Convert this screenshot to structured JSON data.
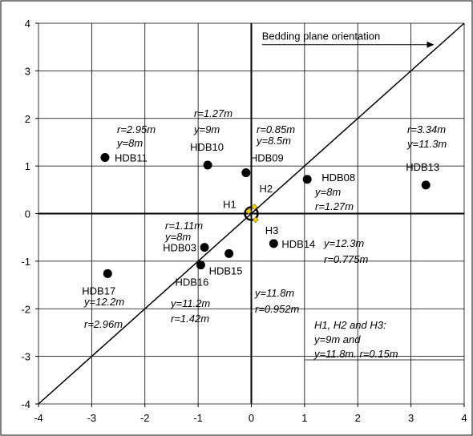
{
  "chart_data": {
    "type": "scatter",
    "title": "",
    "xlabel": "",
    "ylabel": "",
    "xlim": [
      -4,
      4
    ],
    "ylim": [
      -4,
      4
    ],
    "x_ticks": [
      "-4",
      "-3",
      "-2",
      "-1",
      "0",
      "1",
      "2",
      "3",
      "4"
    ],
    "y_ticks": [
      "4",
      "3",
      "2",
      "1",
      "0",
      "-1",
      "-2",
      "-3",
      "-4"
    ],
    "grid": true,
    "reference_line": {
      "from": [
        -4,
        -4
      ],
      "to": [
        4,
        4
      ]
    },
    "orientation_label": "Bedding plane orientation",
    "points": [
      {
        "label": "HDB11",
        "x": -2.75,
        "y": 1.18
      },
      {
        "label": "HDB10",
        "x": -0.82,
        "y": 1.02
      },
      {
        "label": "HDB09",
        "x": -0.1,
        "y": 0.86
      },
      {
        "label": "HDB08",
        "x": 1.05,
        "y": 0.72
      },
      {
        "label": "HDB13",
        "x": 3.28,
        "y": 0.6
      },
      {
        "label": "HDB14",
        "x": 0.42,
        "y": -0.63
      },
      {
        "label": "HDB15",
        "x": -0.42,
        "y": -0.84
      },
      {
        "label": "HDB03",
        "x": -0.88,
        "y": -0.71
      },
      {
        "label": "HDB16",
        "x": -0.95,
        "y": -1.08
      },
      {
        "label": "HDB17",
        "x": -2.7,
        "y": -1.26
      }
    ],
    "holes": [
      {
        "label": "H1",
        "x": -0.05,
        "y": 0.05
      },
      {
        "label": "H2",
        "x": 0.06,
        "y": 0.14
      },
      {
        "label": "H3",
        "x": 0.08,
        "y": -0.13
      }
    ],
    "annotations": [
      {
        "key": "hdb11_r",
        "text": "r=2.95m"
      },
      {
        "key": "hdb11_y",
        "text": "y=8m"
      },
      {
        "key": "hdb10_r",
        "text": "r=1.27m"
      },
      {
        "key": "hdb10_y",
        "text": "y=9m"
      },
      {
        "key": "hdb09_r",
        "text": "r=0.85m"
      },
      {
        "key": "hdb09_y",
        "text": "y=8.5m"
      },
      {
        "key": "hdb13_r",
        "text": "r=3.34m"
      },
      {
        "key": "hdb13_y",
        "text": "y=11.3m"
      },
      {
        "key": "hdb08_y",
        "text": "y=8m"
      },
      {
        "key": "hdb08_r",
        "text": "r=1.27m"
      },
      {
        "key": "hdb03_r",
        "text": "r=1.11m"
      },
      {
        "key": "hdb03_y",
        "text": "y=8m"
      },
      {
        "key": "hdb14_y",
        "text": "y=12.3m"
      },
      {
        "key": "hdb14_r",
        "text": "r=0.775m"
      },
      {
        "key": "hdb15_y",
        "text": "y=11.8m"
      },
      {
        "key": "hdb15_r",
        "text": "r=0.952m"
      },
      {
        "key": "hdb17_y",
        "text": "y=12.2m"
      },
      {
        "key": "hdb17_r",
        "text": "r=2.96m"
      },
      {
        "key": "hdb16_y",
        "text": "y=11.2m"
      },
      {
        "key": "hdb16_r",
        "text": "r=1.42m"
      },
      {
        "key": "holes_1",
        "text": "H1, H2 and H3:"
      },
      {
        "key": "holes_2",
        "text": "y=9m and"
      },
      {
        "key": "holes_3",
        "text": "y=11.8m. r=0.15m"
      }
    ],
    "colors": {
      "point": "#000000",
      "hole_marker": "#f0d000",
      "axis": "#000000",
      "grid": "#000000"
    }
  }
}
